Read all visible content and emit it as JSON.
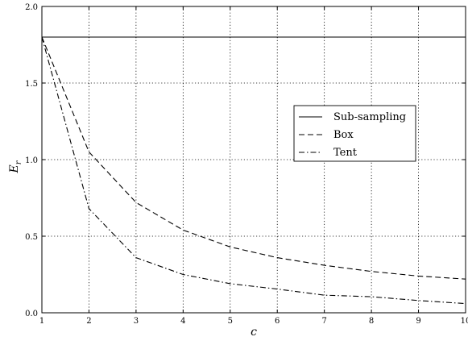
{
  "chart_data": {
    "type": "line",
    "xlabel": "c",
    "ylabel": "E_r",
    "xlim": [
      1,
      10
    ],
    "ylim": [
      0.0,
      2.0
    ],
    "x_ticks": [
      "1",
      "2",
      "3",
      "4",
      "5",
      "6",
      "7",
      "8",
      "9",
      "10"
    ],
    "y_ticks": [
      "0.0",
      "0.5",
      "1.0",
      "1.5",
      "2.0"
    ],
    "grid": true,
    "legend_position": "center-right",
    "x": [
      1,
      2,
      3,
      4,
      5,
      6,
      7,
      8,
      9,
      10
    ],
    "series": [
      {
        "name": "Sub-sampling",
        "style": "solid",
        "values": [
          1.8,
          1.8,
          1.8,
          1.8,
          1.8,
          1.8,
          1.8,
          1.8,
          1.8,
          1.8
        ]
      },
      {
        "name": "Box",
        "style": "dashed",
        "values": [
          1.8,
          1.05,
          0.72,
          0.54,
          0.43,
          0.36,
          0.31,
          0.27,
          0.24,
          0.22
        ]
      },
      {
        "name": "Tent",
        "style": "dashdot",
        "values": [
          1.8,
          0.68,
          0.36,
          0.25,
          0.19,
          0.155,
          0.115,
          0.105,
          0.08,
          0.06
        ]
      }
    ]
  }
}
